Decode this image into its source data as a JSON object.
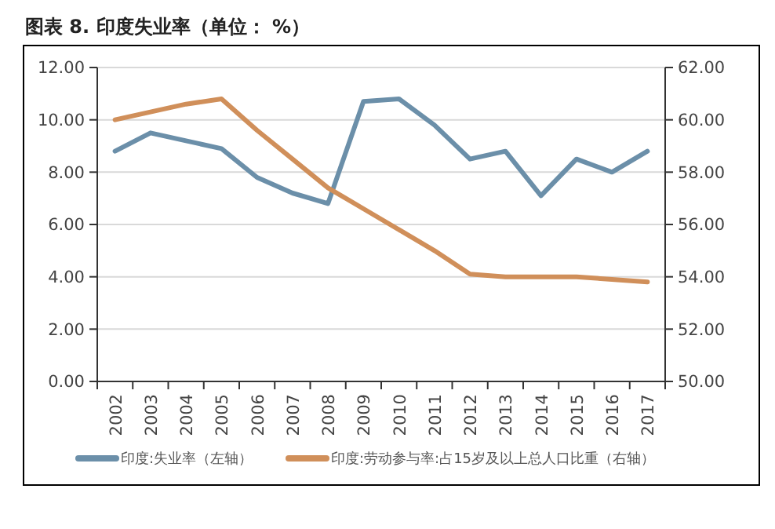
{
  "chart_data": {
    "type": "line",
    "title": "图表 8.  印度失业率（单位：  %）",
    "categories": [
      "2002",
      "2003",
      "2004",
      "2005",
      "2006",
      "2007",
      "2008",
      "2009",
      "2010",
      "2011",
      "2012",
      "2013",
      "2014",
      "2015",
      "2016",
      "2017"
    ],
    "series": [
      {
        "name": "印度:失业率（左轴）",
        "color": "#6b8fa9",
        "values": [
          8.8,
          9.5,
          9.2,
          8.9,
          7.8,
          7.2,
          6.8,
          10.7,
          10.8,
          9.8,
          8.5,
          8.8,
          7.1,
          8.5,
          8.0,
          8.8
        ]
      },
      {
        "name": "印度:劳动参与率:占15岁及以上总人口比重（右轴）",
        "color": "#d08f5a",
        "axis": "y2",
        "values": [
          60.0,
          60.3,
          60.6,
          60.8,
          59.6,
          58.5,
          57.4,
          56.6,
          55.8,
          55.0,
          54.1,
          54.0,
          54.0,
          54.0,
          53.9,
          53.8
        ]
      }
    ],
    "ylim": [
      0,
      12
    ],
    "yticks": [
      {
        "value": 0,
        "label": "0.00"
      },
      {
        "value": 2,
        "label": "2.00"
      },
      {
        "value": 4,
        "label": "4.00"
      },
      {
        "value": 6,
        "label": "6.00"
      },
      {
        "value": 8,
        "label": "8.00"
      },
      {
        "value": 10,
        "label": "10.00"
      },
      {
        "value": 12,
        "label": "12.00"
      }
    ],
    "y2lim": [
      50,
      62
    ],
    "y2ticks": [
      {
        "value": 50,
        "label": "50.00"
      },
      {
        "value": 52,
        "label": "52.00"
      },
      {
        "value": 54,
        "label": "54.00"
      },
      {
        "value": 56,
        "label": "56.00"
      },
      {
        "value": 58,
        "label": "58.00"
      },
      {
        "value": 60,
        "label": "60.00"
      },
      {
        "value": 62,
        "label": "62.00"
      }
    ],
    "grid": "y",
    "legend": "bottom",
    "marker": "none",
    "line_style": "solid"
  }
}
